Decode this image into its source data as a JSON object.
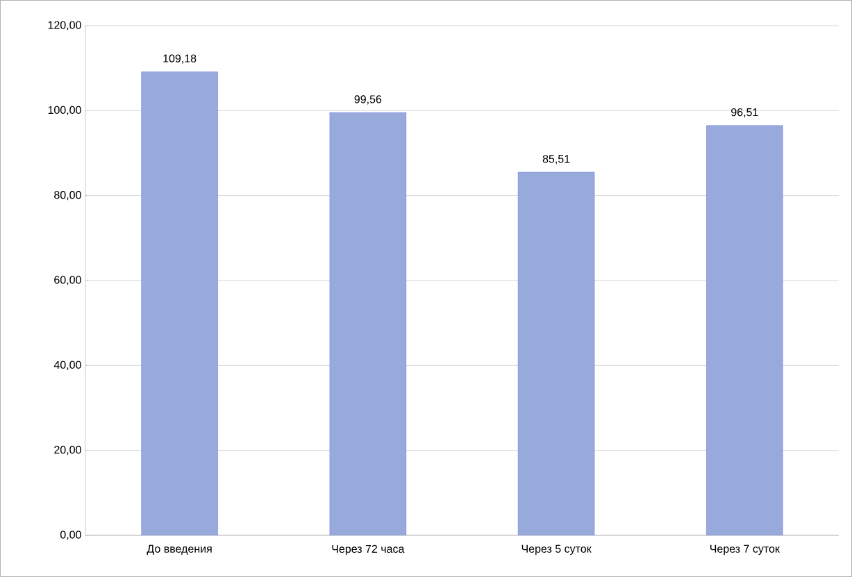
{
  "chart_data": {
    "type": "bar",
    "categories": [
      "До введения",
      "Через 72 часа",
      "Через 5 суток",
      "Через 7 суток"
    ],
    "values": [
      109.18,
      99.56,
      85.51,
      96.51
    ],
    "value_labels": [
      "109,18",
      "99,56",
      "85,51",
      "96,51"
    ],
    "color": "#98aadb",
    "ylim": [
      0,
      120
    ],
    "yticks": [
      {
        "value": 0,
        "label": "0,00"
      },
      {
        "value": 20,
        "label": "20,00"
      },
      {
        "value": 40,
        "label": "40,00"
      },
      {
        "value": 60,
        "label": "60,00"
      },
      {
        "value": 80,
        "label": "80,00"
      },
      {
        "value": 100,
        "label": "100,00"
      },
      {
        "value": 120,
        "label": "120,00"
      }
    ],
    "grid": "y"
  }
}
